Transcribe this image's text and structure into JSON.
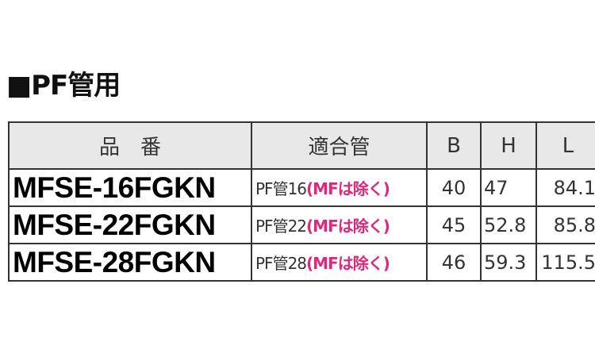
{
  "title": "■PF管用",
  "table": {
    "headers": [
      "品　番",
      "適合管",
      "B",
      "H",
      "L"
    ],
    "rows": [
      {
        "code": "MFSE-16FGKN",
        "pipe": "PF管16",
        "note": "(MFは除く)",
        "B": "40",
        "H": "47",
        "L": "84.1"
      },
      {
        "code": "MFSE-22FGKN",
        "pipe": "PF管22",
        "note": "(MFは除く)",
        "B": "45",
        "H": "52.8",
        "L": "85.8"
      },
      {
        "code": "MFSE-28FGKN",
        "pipe": "PF管28",
        "note": "(MFは除く)",
        "B": "46",
        "H": "59.3",
        "L": "115.5"
      }
    ]
  },
  "colors": {
    "note": "#e0287a",
    "header_bg": "#e8e8e8"
  }
}
